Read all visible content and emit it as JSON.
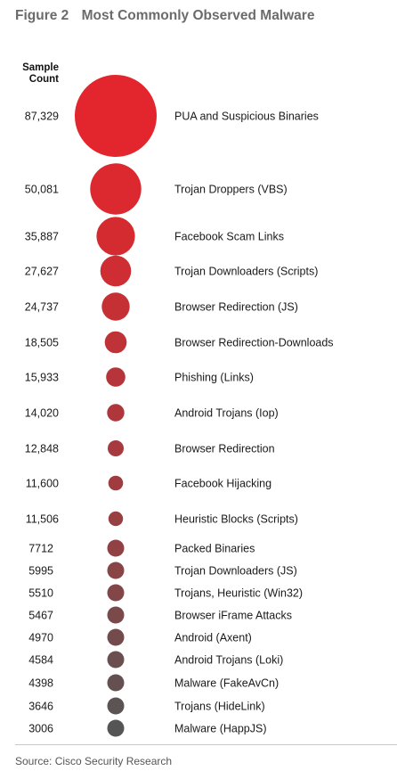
{
  "figure": {
    "number": "Figure 2",
    "title": "Most Commonly Observed Malware"
  },
  "source": "Source: Cisco Security Research",
  "chart_data": {
    "type": "bubble",
    "value_header": [
      "Sample",
      "Count"
    ],
    "colors": {
      "start": "#e3262d",
      "end": "#555555"
    },
    "categories": [
      "PUA and Suspicious Binaries",
      "Trojan Droppers (VBS)",
      "Facebook Scam Links",
      "Trojan Downloaders (Scripts)",
      "Browser Redirection (JS)",
      "Browser Redirection-Downloads",
      "Phishing (Links)",
      "Android Trojans (Iop)",
      "Browser Redirection",
      "Facebook Hijacking",
      "Heuristic Blocks (Scripts)",
      "Packed Binaries",
      "Trojan Downloaders (JS)",
      "Trojans, Heuristic (Win32)",
      "Browser iFrame Attacks",
      "Android (Axent)",
      "Android Trojans (Loki)",
      "Malware (FakeAvCn)",
      "Trojans (HideLink)",
      "Malware (HappJS)"
    ],
    "values": [
      87329,
      50081,
      35887,
      27627,
      24737,
      18505,
      15933,
      14020,
      12848,
      11600,
      11506,
      7712,
      5995,
      5510,
      5467,
      4970,
      4584,
      4398,
      3646,
      3006
    ],
    "value_labels": [
      "87,329",
      "50,081",
      "35,887",
      "27,627",
      "24,737",
      "18,505",
      "15,933",
      "14,020",
      "12,848",
      "11,600",
      "11,506",
      "7712",
      "5995",
      "5510",
      "5467",
      "4970",
      "4584",
      "4398",
      "3646",
      "3006"
    ]
  }
}
